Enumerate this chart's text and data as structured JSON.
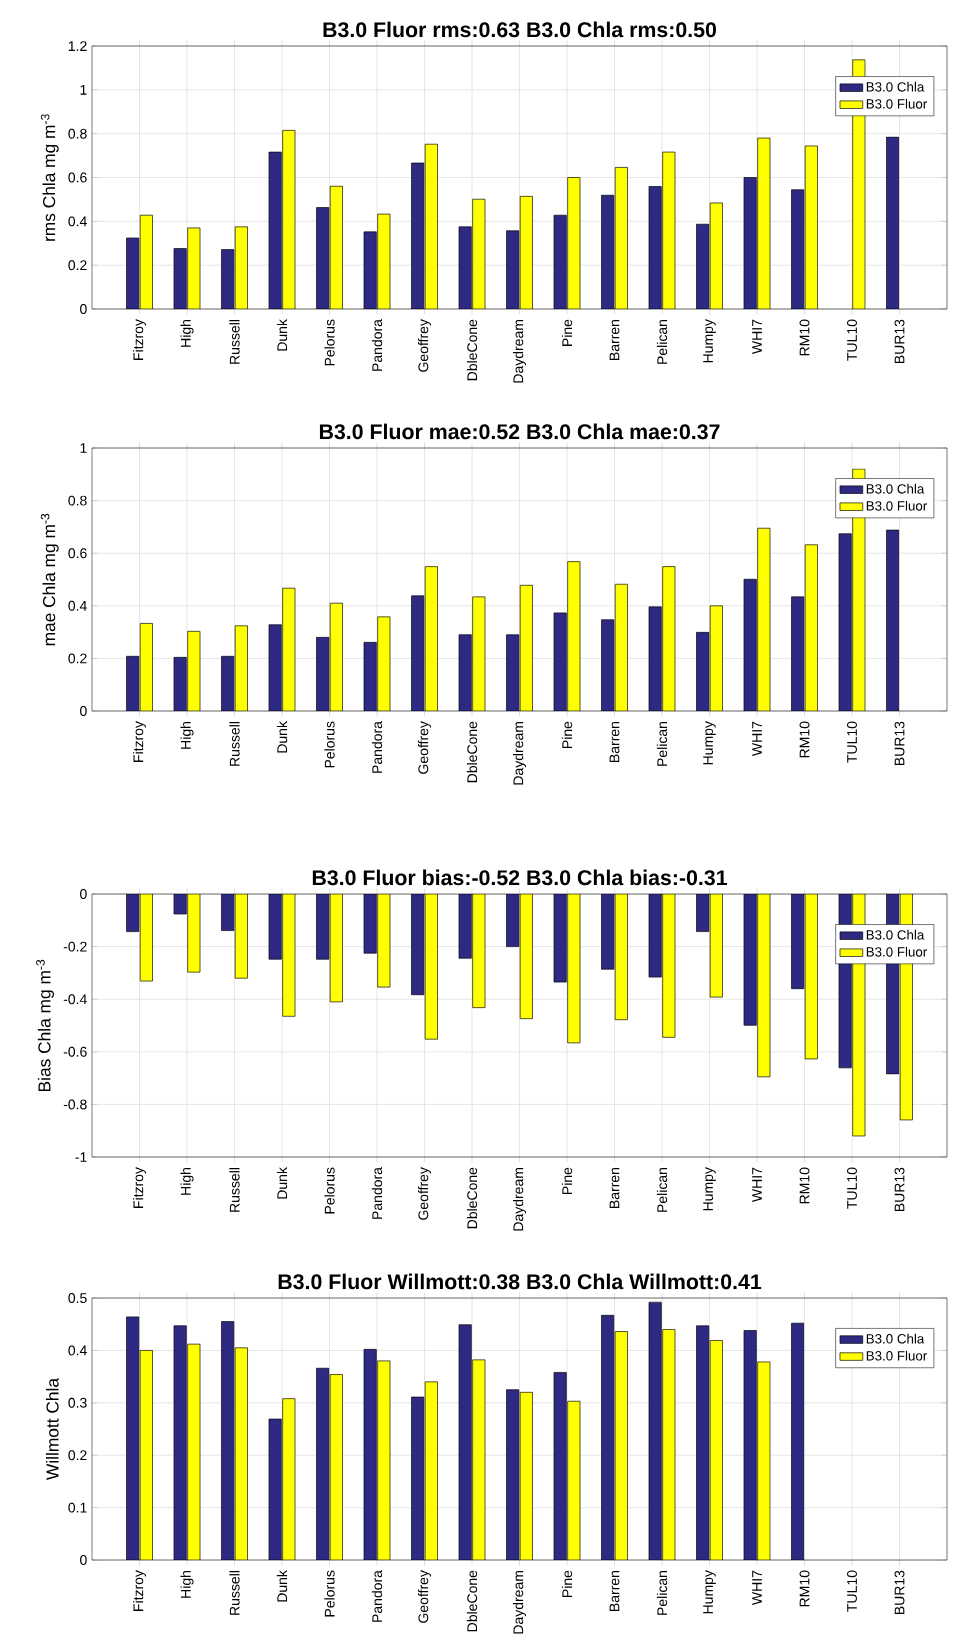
{
  "chart_data": [
    {
      "type": "bar",
      "title": "B3.0 Fluor rms:0.63     B3.0 Chla rms:0.50",
      "ylabel": "rms Chla mg m$^{-3}$",
      "categories": [
        "Fitzroy",
        "High",
        "Russell",
        "Dunk",
        "Pelorus",
        "Pandora",
        "Geoffrey",
        "DbleCone",
        "Daydream",
        "Pine",
        "Barren",
        "Pelican",
        "Humpy",
        "WHI7",
        "RM10",
        "TUL10",
        "BUR13"
      ],
      "series": [
        {
          "name": "B3.0 Chla",
          "color": "#2e2a84",
          "values": [
            0.324,
            0.276,
            0.271,
            0.716,
            0.463,
            0.352,
            0.666,
            0.375,
            0.357,
            0.428,
            0.519,
            0.559,
            0.387,
            0.6,
            0.544,
            null,
            0.785
          ]
        },
        {
          "name": "B3.0 Fluor",
          "color": "#ffff00",
          "values": [
            0.428,
            0.37,
            0.375,
            0.815,
            0.56,
            0.433,
            0.752,
            0.501,
            0.514,
            0.6,
            0.646,
            0.716,
            0.484,
            0.78,
            0.744,
            1.137,
            null
          ]
        }
      ],
      "ylim": [
        0,
        1.2
      ],
      "yticks": [
        0,
        0.2,
        0.4,
        0.6,
        0.8,
        1,
        1.2
      ],
      "grid": true,
      "legend": "top right"
    },
    {
      "type": "bar",
      "title": "B3.0 Fluor  mae:0.52     B3.0 Chla mae:0.37",
      "ylabel": "mae Chla mg m$^{-3}$",
      "categories": [
        "Fitzroy",
        "High",
        "Russell",
        "Dunk",
        "Pelorus",
        "Pandora",
        "Geoffrey",
        "DbleCone",
        "Daydream",
        "Pine",
        "Barren",
        "Pelican",
        "Humpy",
        "WHI7",
        "RM10",
        "TUL10",
        "BUR13"
      ],
      "series": [
        {
          "name": "B3.0 Chla",
          "color": "#2e2a84",
          "values": [
            0.208,
            0.204,
            0.208,
            0.328,
            0.28,
            0.261,
            0.438,
            0.29,
            0.29,
            0.373,
            0.347,
            0.396,
            0.299,
            0.501,
            0.434,
            0.674,
            0.688
          ]
        },
        {
          "name": "B3.0 Fluor",
          "color": "#ffff00",
          "values": [
            0.333,
            0.303,
            0.324,
            0.467,
            0.41,
            0.358,
            0.549,
            0.434,
            0.478,
            0.568,
            0.482,
            0.549,
            0.4,
            0.695,
            0.632,
            0.92,
            null
          ]
        }
      ],
      "ylim": [
        0,
        1
      ],
      "yticks": [
        0,
        0.2,
        0.4,
        0.6,
        0.8,
        1
      ],
      "grid": true,
      "legend": "top right"
    },
    {
      "type": "bar",
      "title": "B3.0 Fluor bias:-0.52     B3.0 Chla bias:-0.31",
      "ylabel": "Bias Chla mg m$^{-3}$",
      "categories": [
        "Fitzroy",
        "High",
        "Russell",
        "Dunk",
        "Pelorus",
        "Pandora",
        "Geoffrey",
        "DbleCone",
        "Daydream",
        "Pine",
        "Barren",
        "Pelican",
        "Humpy",
        "WHI7",
        "RM10",
        "TUL10",
        "BUR13"
      ],
      "series": [
        {
          "name": "B3.0 Chla",
          "color": "#2e2a84",
          "values": [
            -0.143,
            -0.076,
            -0.139,
            -0.248,
            -0.248,
            -0.225,
            -0.383,
            -0.244,
            -0.2,
            -0.335,
            -0.286,
            -0.316,
            -0.143,
            -0.499,
            -0.36,
            -0.661,
            -0.684
          ]
        },
        {
          "name": "B3.0 Fluor",
          "color": "#ffff00",
          "values": [
            -0.331,
            -0.297,
            -0.32,
            -0.465,
            -0.41,
            -0.354,
            -0.552,
            -0.432,
            -0.474,
            -0.566,
            -0.478,
            -0.545,
            -0.392,
            -0.695,
            -0.627,
            -0.92,
            -0.859
          ]
        }
      ],
      "ylim": [
        -1,
        0
      ],
      "yticks": [
        -1,
        -0.8,
        -0.6,
        -0.4,
        -0.2,
        0
      ],
      "grid": true,
      "legend": "top right"
    },
    {
      "type": "bar",
      "title": "B3.0 Fluor Willmott:0.38     B3.0 Chla Willmott:0.41",
      "ylabel": "Willmott Chla",
      "categories": [
        "Fitzroy",
        "High",
        "Russell",
        "Dunk",
        "Pelorus",
        "Pandora",
        "Geoffrey",
        "DbleCone",
        "Daydream",
        "Pine",
        "Barren",
        "Pelican",
        "Humpy",
        "WHI7",
        "RM10",
        "TUL10",
        "BUR13"
      ],
      "series": [
        {
          "name": "B3.0 Chla",
          "color": "#2e2a84",
          "values": [
            0.464,
            0.447,
            0.455,
            0.269,
            0.366,
            0.402,
            0.311,
            0.449,
            0.325,
            0.358,
            0.467,
            0.492,
            0.447,
            0.438,
            0.452,
            null,
            null
          ]
        },
        {
          "name": "B3.0 Fluor",
          "color": "#ffff00",
          "values": [
            0.4,
            0.412,
            0.405,
            0.308,
            0.354,
            0.38,
            0.34,
            0.382,
            0.32,
            0.303,
            0.436,
            0.44,
            0.419,
            0.378,
            null,
            null,
            null
          ]
        }
      ],
      "ylim": [
        0,
        0.5
      ],
      "yticks": [
        0,
        0.1,
        0.2,
        0.3,
        0.4,
        0.5
      ],
      "grid": true,
      "legend": "top right"
    }
  ]
}
